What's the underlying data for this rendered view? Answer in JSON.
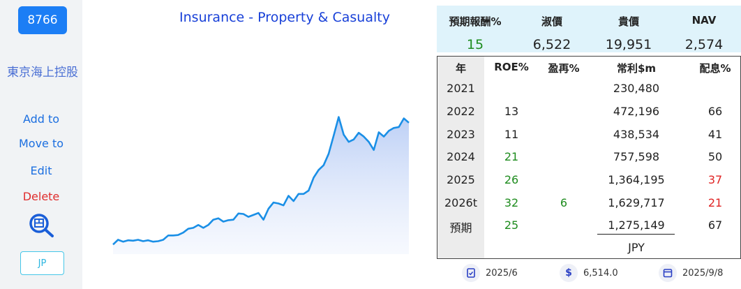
{
  "sidebar": {
    "code": "8766",
    "company_name": "東京海上控股",
    "add_to": "Add to",
    "move_to": "Move to",
    "edit": "Edit",
    "delete": "Delete",
    "region": "JP"
  },
  "chart": {
    "title": "Insurance - Property & Casualty"
  },
  "chart_data": {
    "type": "area",
    "title": "Insurance - Property & Casualty",
    "xlabel": "",
    "ylabel": "",
    "grid": false,
    "legend": "none",
    "color": "#1a8fe6",
    "values": [
      2.0,
      3.0,
      2.6,
      2.9,
      2.8,
      3.0,
      2.7,
      2.9,
      2.6,
      2.7,
      3.0,
      3.9,
      3.9,
      4.0,
      4.5,
      5.3,
      5.5,
      6.1,
      5.5,
      6.1,
      7.2,
      7.5,
      6.8,
      7.1,
      7.2,
      8.5,
      8.4,
      7.8,
      8.2,
      8.6,
      7.2,
      9.5,
      10.8,
      10.6,
      10.2,
      12.2,
      11.1,
      12.6,
      12.6,
      13.3,
      16.0,
      17.6,
      18.6,
      21.0,
      24.8,
      28.7,
      25.0,
      23.5,
      24.0,
      25.4,
      24.6,
      23.5,
      21.8,
      25.5,
      24.6,
      25.8,
      26.4,
      26.6,
      28.4,
      27.5
    ],
    "ylim": [
      0,
      32
    ]
  },
  "quote": {
    "headers": [
      "預期報酬%",
      "淑價",
      "貴價",
      "NAV"
    ],
    "values": [
      "15",
      "6,522",
      "19,951",
      "2,574"
    ]
  },
  "table": {
    "headers": [
      "年",
      "ROE%",
      "盈再%",
      "常利$m",
      "配息%"
    ],
    "rows": [
      {
        "year": "2021",
        "roe": "",
        "reinvest": "",
        "profit": "230,480",
        "dividend": ""
      },
      {
        "year": "2022",
        "roe": "13",
        "reinvest": "",
        "profit": "472,196",
        "dividend": "66"
      },
      {
        "year": "2023",
        "roe": "11",
        "reinvest": "",
        "profit": "438,534",
        "dividend": "41"
      },
      {
        "year": "2024",
        "roe": "21",
        "reinvest": "",
        "profit": "757,598",
        "dividend": "50"
      },
      {
        "year": "2025",
        "roe": "26",
        "reinvest": "",
        "profit": "1,364,195",
        "dividend": "37"
      },
      {
        "year": "2026t",
        "roe": "32",
        "reinvest": "6",
        "profit": "1,629,717",
        "dividend": "21"
      },
      {
        "year": "預期",
        "roe": "25",
        "reinvest": "",
        "profit": "1,275,149",
        "dividend": "67"
      }
    ],
    "currency": "JPY"
  },
  "footer": {
    "period": "2025/6",
    "price": "6,514.0",
    "date": "2025/9/8"
  },
  "colors": {
    "accent": "#1c7ef5",
    "green": "#1e8c1e",
    "red": "#e02424",
    "header_bg": "#dff3fb"
  }
}
